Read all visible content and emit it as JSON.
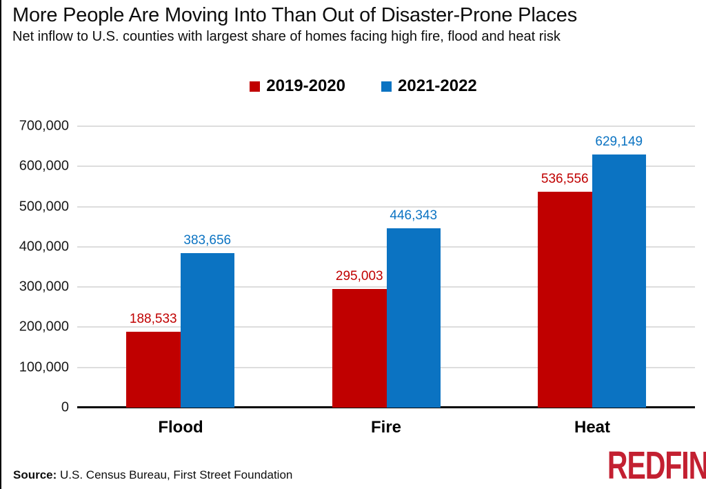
{
  "header": {
    "title": "More People Are Moving Into Than Out of Disaster-Prone Places",
    "subtitle": "Net inflow to U.S. counties with largest share of homes facing high fire, flood and heat risk"
  },
  "chart_data": {
    "type": "bar",
    "categories": [
      "Flood",
      "Fire",
      "Heat"
    ],
    "series": [
      {
        "name": "2019-2020",
        "color": "#c00000",
        "values": [
          188533,
          295003,
          536556
        ],
        "labels": [
          "188,533",
          "295,003",
          "536,556"
        ]
      },
      {
        "name": "2021-2022",
        "color": "#0b73c2",
        "values": [
          383656,
          446343,
          629149
        ],
        "labels": [
          "383,656",
          "446,343",
          "629,149"
        ]
      }
    ],
    "title": "More People Are Moving Into Than Out of Disaster-Prone Places",
    "xlabel": "",
    "ylabel": "",
    "ylim": [
      0,
      700000
    ],
    "yticks": [
      "700,000",
      "600,000",
      "500,000",
      "400,000",
      "300,000",
      "200,000",
      "100,000",
      "0"
    ],
    "grid": true,
    "legend_position": "top",
    "gridline_color": "#dddddd",
    "baseline_color": "#000000"
  },
  "footer": {
    "source_label": "Source:",
    "source_text": " U.S. Census Bureau, First Street Foundation",
    "logo": "REDFIN",
    "logo_color": "#c32031"
  }
}
